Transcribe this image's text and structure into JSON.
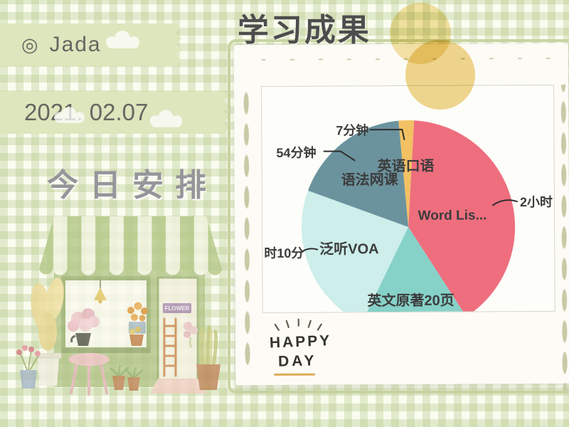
{
  "page": {
    "title": "学习成果",
    "gingham_green": "#b8cb8e",
    "tape_green": "#dde6bc",
    "card_dot_color": "#c6cba6",
    "yellow_circle_color": "#eed384"
  },
  "left_panel": {
    "name_tag": {
      "icon": "◎",
      "text": "Jada"
    },
    "date_tag": {
      "text": "2021. 02.07"
    },
    "schedule_heading": "今日安排",
    "shop": {
      "sign_text": "FLOWER"
    }
  },
  "polaroid": {
    "sticker": {
      "line1": "HAPPY",
      "line2": "DAY",
      "underline_color": "#ddab55"
    }
  },
  "chart_data": {
    "type": "pie",
    "title": "学习成果",
    "unit": "minutes",
    "total_minutes_estimate": 300,
    "start_angle_deg": -5,
    "legend_position": "none",
    "label_color": "#3c3c3c",
    "segments": [
      {
        "label": "英语口语",
        "time_label": "7分钟",
        "minutes": 7,
        "color": "#f2c163"
      },
      {
        "label": "Word Lis...",
        "time_label": "2小时",
        "minutes": 120,
        "color": "#ee6e7e"
      },
      {
        "label": "英文原著20页",
        "time_label": "",
        "minutes": 49,
        "color": "#86d1c8"
      },
      {
        "label": "泛听VOA",
        "time_label": "时10分",
        "minutes": 70,
        "color": "#cdeeea"
      },
      {
        "label": "语法网课",
        "time_label": "54分钟",
        "minutes": 54,
        "color": "#6b939e"
      }
    ]
  }
}
